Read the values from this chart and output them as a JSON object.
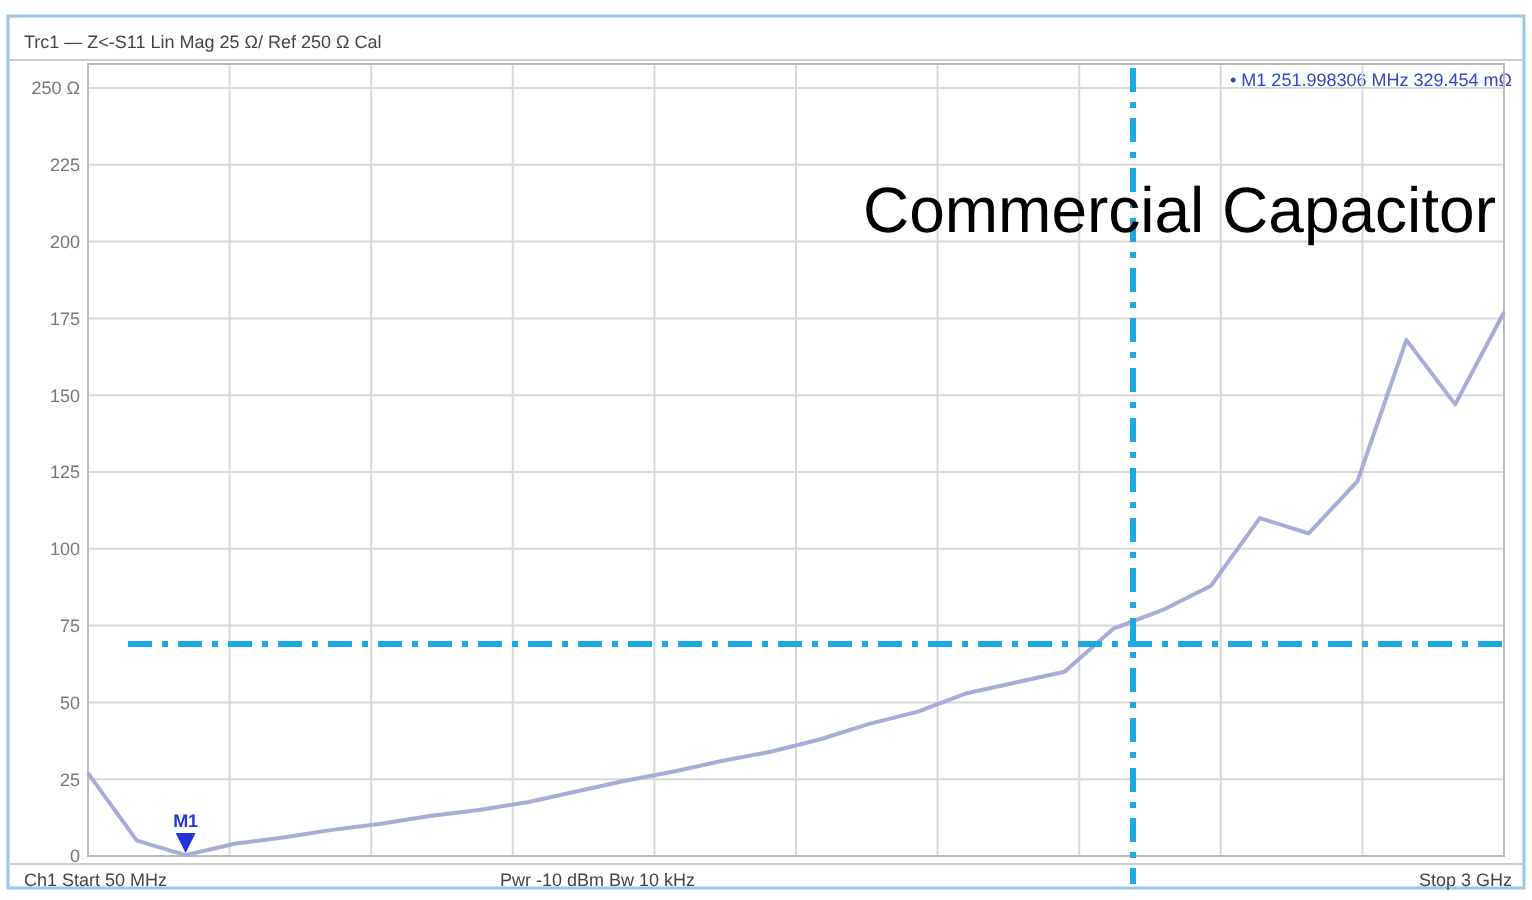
{
  "chart_data": {
    "type": "line",
    "title": "Commercial Capacitor",
    "categories": [
      null,
      null,
      null,
      null,
      null,
      null,
      null,
      null,
      null,
      null,
      null,
      null,
      null,
      null,
      null,
      null,
      null,
      null,
      null,
      null,
      null,
      null,
      null,
      null,
      null,
      null,
      null,
      null,
      null,
      null
    ],
    "series": [
      {
        "color": "#a7acd8",
        "values": [
          27,
          5,
          0.3,
          4,
          6,
          8.5,
          10.5,
          13,
          15,
          17.5,
          21,
          24.5,
          27.5,
          31,
          34,
          38,
          43,
          47,
          53,
          56.5,
          60,
          74,
          80,
          88,
          110,
          105,
          122,
          168,
          147,
          177
        ]
      }
    ],
    "ylim": [
      0,
      250
    ],
    "yticks": [
      0,
      25,
      50,
      75,
      100,
      125,
      150,
      175,
      200,
      225,
      {
        "value": 250,
        "label": "250 Ω"
      }
    ],
    "grid": true,
    "marker": "none",
    "line_style": "solid",
    "ref_lines": [
      {
        "axis": "y",
        "value": 69,
        "color": "#1ba9e8",
        "line_style": "dashdot"
      }
    ],
    "annotations": [
      "Trc1 — Z<-S11 Lin Mag 25 Ω/ Ref 250 Ω Cal",
      "• M1 251.998306 MHz 329.454 mΩ",
      "Ch1 Start 50 MHz",
      "Pwr -10 dBm Bw 10 kHz",
      "Stop 3 GHz",
      "M1"
    ]
  }
}
